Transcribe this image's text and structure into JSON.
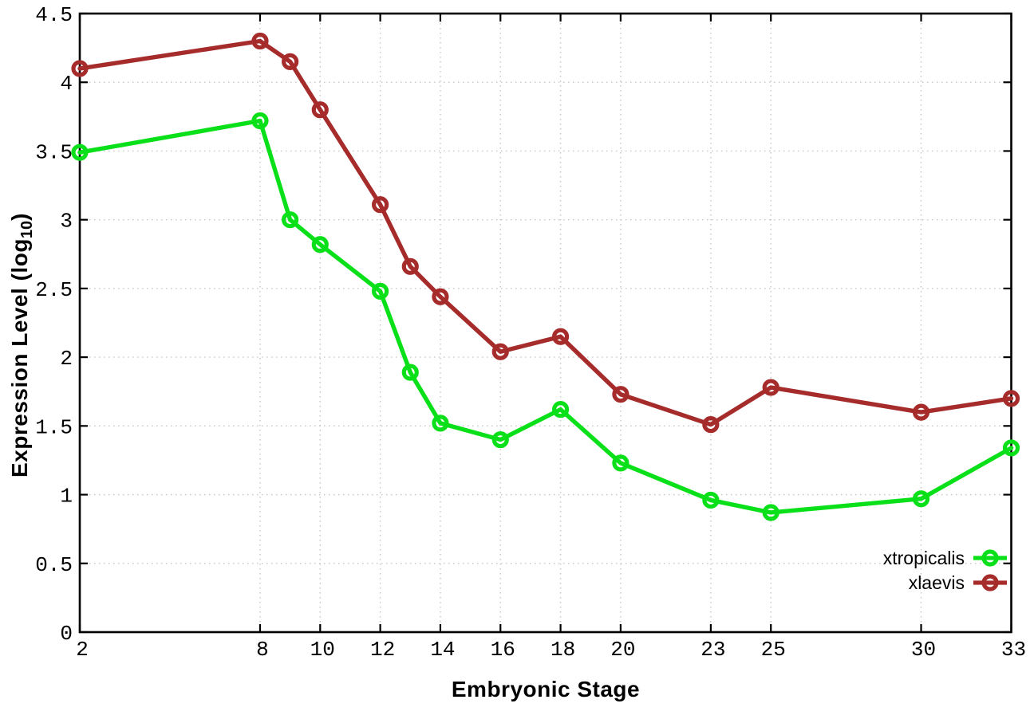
{
  "figure": {
    "background": "#ffffff",
    "plot_border_color": "#000000",
    "grid_color": "#c6c6c6"
  },
  "axes": {
    "xlabel": "Embryonic Stage",
    "ylabel_prefix": "Expression Level (log",
    "ylabel_sub": "10",
    "ylabel_suffix": ")"
  },
  "chart_data": {
    "type": "line",
    "title": "",
    "xlabel": "Embryonic Stage",
    "ylabel": "Expression Level (log10)",
    "x": [
      2,
      8,
      9,
      10,
      12,
      13,
      14,
      16,
      18,
      20,
      23,
      25,
      30,
      33
    ],
    "series": [
      {
        "name": "xtropicalis",
        "color": "#0ae019",
        "values": [
          3.49,
          3.72,
          3.0,
          2.82,
          2.48,
          1.89,
          1.52,
          1.4,
          1.62,
          1.23,
          0.96,
          0.87,
          0.97,
          1.34
        ]
      },
      {
        "name": "xlaevis",
        "color": "#a62b2b",
        "values": [
          4.1,
          4.3,
          4.15,
          3.8,
          3.11,
          2.66,
          2.44,
          2.04,
          2.15,
          1.73,
          1.51,
          1.78,
          1.6,
          1.7
        ]
      }
    ],
    "xlim": [
      2,
      33
    ],
    "ylim": [
      0,
      4.5
    ],
    "xticks": [
      2,
      8,
      10,
      12,
      14,
      16,
      18,
      20,
      23,
      25,
      30,
      33
    ],
    "yticks": [
      0,
      0.5,
      1,
      1.5,
      2,
      2.5,
      3,
      3.5,
      4,
      4.5
    ],
    "grid": true,
    "grid_style": "dotted",
    "marker": "open-circle",
    "legend_position": "bottom-right",
    "legend_entries": [
      "xtropicalis",
      "xlaevis"
    ]
  }
}
